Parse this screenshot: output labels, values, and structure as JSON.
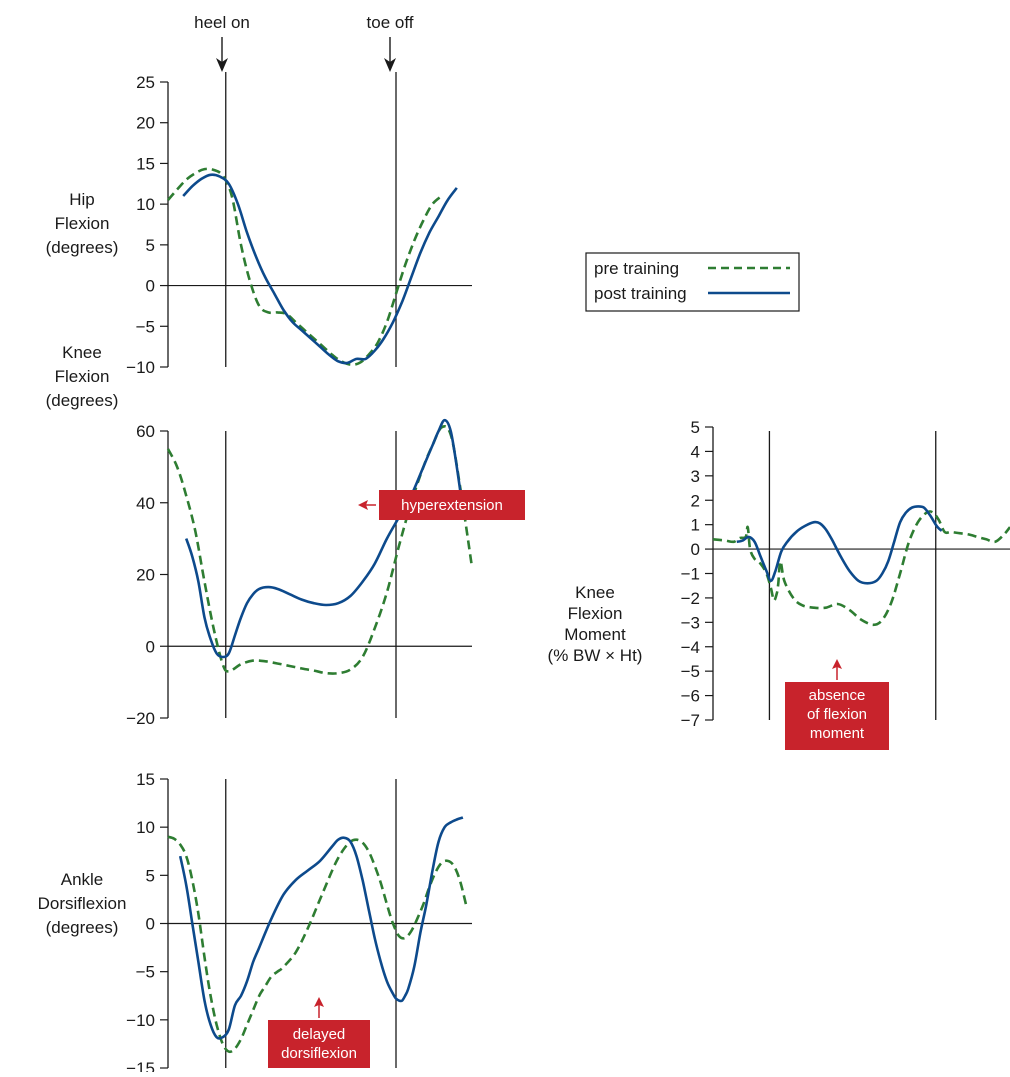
{
  "colors": {
    "pre": "#2e7d32",
    "post": "#0d4a8c",
    "callout": "#c8232c",
    "axis": "#1a1a1a"
  },
  "events": {
    "heel_on": "heel on",
    "toe_off": "toe off"
  },
  "legend": {
    "pre": "pre training",
    "post": "post training"
  },
  "chart_data": [
    {
      "id": "hip",
      "type": "line",
      "ylabel": [
        "Hip",
        "Flexion",
        "(degrees)"
      ],
      "ylim": [
        -10,
        25
      ],
      "yticks": [
        25,
        20,
        15,
        10,
        5,
        0,
        -5,
        -10
      ],
      "xlim": [
        0,
        100
      ],
      "events_x": [
        19,
        75
      ],
      "grid": false,
      "series": [
        {
          "name": "pre training",
          "style": "dashed",
          "x": [
            0,
            3,
            6,
            9,
            12,
            15,
            18,
            21,
            24,
            27,
            30,
            33,
            36,
            39,
            42,
            45,
            48,
            51,
            54,
            57,
            60,
            63,
            66,
            69,
            72,
            75,
            78,
            81,
            84,
            87,
            90
          ],
          "y": [
            10.5,
            11.8,
            13.0,
            13.8,
            14.3,
            14.2,
            13.5,
            11.0,
            5.0,
            0.5,
            -2.5,
            -3.3,
            -3.3,
            -3.5,
            -4.5,
            -5.5,
            -6.5,
            -7.5,
            -8.5,
            -9.3,
            -9.7,
            -9.5,
            -8.5,
            -7.0,
            -4.5,
            -1.0,
            2.5,
            5.5,
            8.0,
            10.0,
            11.0
          ]
        },
        {
          "name": "post training",
          "style": "solid",
          "x": [
            5,
            8,
            11,
            14,
            17,
            20,
            23,
            26,
            29,
            32,
            35,
            38,
            41,
            44,
            47,
            50,
            53,
            56,
            59,
            62,
            65,
            68,
            71,
            74,
            77,
            80,
            83,
            86,
            89,
            92,
            95
          ],
          "y": [
            11.0,
            12.2,
            13.1,
            13.6,
            13.4,
            12.5,
            10.0,
            6.5,
            3.5,
            1.0,
            -1.0,
            -3.0,
            -4.5,
            -5.5,
            -6.5,
            -7.5,
            -8.5,
            -9.3,
            -9.5,
            -9.0,
            -9.0,
            -8.0,
            -6.5,
            -4.5,
            -2.0,
            1.0,
            4.0,
            6.5,
            8.5,
            10.5,
            12.0
          ]
        }
      ]
    },
    {
      "id": "knee",
      "type": "line",
      "ylabel": [
        "Knee",
        "Flexion",
        "(degrees)"
      ],
      "ylim": [
        -20,
        60
      ],
      "yticks": [
        60,
        40,
        20,
        0,
        -20
      ],
      "xlim": [
        0,
        100
      ],
      "events_x": [
        19,
        75
      ],
      "grid": false,
      "series": [
        {
          "name": "pre training",
          "style": "dashed",
          "x": [
            0,
            3,
            6,
            9,
            12,
            15,
            18,
            20,
            24,
            28,
            32,
            36,
            40,
            44,
            48,
            52,
            56,
            60,
            64,
            68,
            72,
            76,
            80,
            84,
            87,
            90,
            93,
            96,
            100
          ],
          "y": [
            55,
            50,
            42,
            32,
            18,
            5,
            -5,
            -7,
            -5,
            -4,
            -4.2,
            -4.8,
            -5.5,
            -6.2,
            -6.8,
            -7.5,
            -7.5,
            -6.5,
            -3,
            5,
            15,
            28,
            40,
            50,
            56,
            61,
            59,
            45,
            22
          ]
        },
        {
          "name": "post training",
          "style": "solid",
          "x": [
            6,
            8,
            10,
            12,
            14,
            16,
            18,
            20,
            22,
            24,
            26,
            28,
            30,
            33,
            36,
            40,
            44,
            48,
            52,
            56,
            60,
            64,
            68,
            72,
            76,
            80,
            84,
            87,
            89,
            91,
            93,
            95,
            97
          ],
          "y": [
            30,
            25,
            18,
            8,
            2,
            -2,
            -3,
            -2,
            3,
            8,
            12,
            14.5,
            16,
            16.5,
            16,
            14.5,
            13,
            12,
            11.5,
            12,
            14,
            18,
            23,
            30,
            36,
            42,
            50,
            56,
            60,
            63,
            60,
            50,
            38
          ]
        }
      ]
    },
    {
      "id": "ankle",
      "type": "line",
      "ylabel": [
        "Ankle",
        "Dorsiflexion",
        "(degrees)"
      ],
      "ylim": [
        -15,
        15
      ],
      "yticks": [
        15,
        10,
        5,
        0,
        -5,
        -10,
        -15
      ],
      "xlim": [
        0,
        100
      ],
      "events_x": [
        19,
        75
      ],
      "grid": false,
      "series": [
        {
          "name": "pre training",
          "style": "dashed",
          "x": [
            0,
            2,
            4,
            6,
            8,
            10,
            12,
            14,
            16,
            18,
            20,
            22,
            24,
            26,
            28,
            30,
            32,
            34,
            36,
            38,
            42,
            46,
            50,
            54,
            56,
            58,
            60,
            62,
            64,
            66,
            68,
            70,
            72,
            74,
            76,
            78,
            80,
            82,
            84,
            86,
            88,
            90,
            92,
            94,
            96,
            98
          ],
          "y": [
            9,
            8.8,
            8.2,
            7.0,
            4.5,
            1.0,
            -3.5,
            -7.5,
            -10.5,
            -12.5,
            -13.3,
            -13.0,
            -12.0,
            -10.5,
            -9.0,
            -7.5,
            -6.5,
            -5.5,
            -5.0,
            -4.5,
            -3.0,
            -0.5,
            2.5,
            5.5,
            6.8,
            7.8,
            8.5,
            8.7,
            8.4,
            7.5,
            6.0,
            4.2,
            2.0,
            0.0,
            -1.3,
            -1.5,
            -0.8,
            0.5,
            2.0,
            3.8,
            5.3,
            6.3,
            6.5,
            6.0,
            4.5,
            2.0
          ]
        },
        {
          "name": "post training",
          "style": "solid",
          "x": [
            4,
            6,
            8,
            10,
            12,
            14,
            16,
            18,
            20,
            22,
            24,
            26,
            28,
            30,
            34,
            38,
            42,
            46,
            50,
            54,
            56,
            58,
            60,
            62,
            64,
            66,
            68,
            70,
            72,
            74,
            75,
            76,
            77,
            78,
            79,
            81,
            83,
            85,
            87,
            89,
            91,
            93,
            95,
            97
          ],
          "y": [
            7.0,
            4.0,
            0.0,
            -4.0,
            -8.0,
            -10.5,
            -11.8,
            -11.8,
            -11.0,
            -8.5,
            -7.5,
            -6.0,
            -4.0,
            -2.5,
            0.5,
            3.0,
            4.5,
            5.5,
            6.5,
            8.0,
            8.7,
            8.9,
            8.5,
            7.0,
            4.5,
            1.5,
            -1.5,
            -4.0,
            -6.0,
            -7.3,
            -7.8,
            -8.0,
            -8.0,
            -7.5,
            -6.8,
            -4.5,
            -1.0,
            2.0,
            5.5,
            8.5,
            10.0,
            10.5,
            10.8,
            11.0
          ]
        }
      ]
    },
    {
      "id": "moment",
      "type": "line",
      "ylabel": [
        "Knee",
        "Flexion",
        "Moment",
        "(% BW × Ht)"
      ],
      "ylim": [
        -7,
        5
      ],
      "yticks": [
        5,
        4,
        3,
        2,
        1,
        0,
        -1,
        -2,
        -3,
        -4,
        -5,
        -6,
        -7
      ],
      "xlim": [
        0,
        100
      ],
      "events_x": [
        19,
        75
      ],
      "grid": false,
      "series": [
        {
          "name": "pre training",
          "style": "dashed",
          "x": [
            0,
            4,
            7,
            9,
            11,
            11.7,
            12.5,
            14,
            16,
            18,
            19.5,
            20.5,
            21.5,
            22,
            22.7,
            24,
            27,
            30,
            34,
            38,
            42,
            46,
            50,
            54,
            57,
            60,
            63,
            66,
            69,
            72,
            74,
            76,
            78,
            80,
            83,
            86,
            89,
            92,
            95,
            98,
            100
          ],
          "y": [
            0.4,
            0.35,
            0.3,
            0.45,
            0.5,
            0.9,
            0.0,
            -0.4,
            -0.6,
            -1.0,
            -1.6,
            -2.1,
            -1.8,
            -1.4,
            -0.5,
            -1.3,
            -2.0,
            -2.3,
            -2.4,
            -2.4,
            -2.25,
            -2.5,
            -2.9,
            -3.1,
            -2.9,
            -2.2,
            -1.0,
            0.3,
            1.1,
            1.5,
            1.5,
            1.2,
            0.7,
            0.7,
            0.65,
            0.6,
            0.5,
            0.4,
            0.3,
            0.6,
            0.9
          ]
        },
        {
          "name": "post training",
          "style": "solid",
          "x": [
            8,
            10,
            12,
            14,
            16,
            18,
            19.5,
            21,
            23,
            25,
            28,
            31,
            34,
            36,
            38,
            40,
            43,
            46,
            49,
            52,
            55,
            57,
            59,
            61,
            63,
            65,
            67,
            69,
            71,
            73,
            75,
            76,
            77
          ],
          "y": [
            0.3,
            0.35,
            0.5,
            0.3,
            -0.3,
            -0.9,
            -1.3,
            -0.9,
            -0.1,
            0.3,
            0.7,
            0.95,
            1.1,
            1.05,
            0.8,
            0.4,
            -0.3,
            -0.9,
            -1.3,
            -1.4,
            -1.3,
            -1.0,
            -0.5,
            0.3,
            1.1,
            1.5,
            1.7,
            1.75,
            1.7,
            1.4,
            1.0,
            0.85,
            0.75
          ]
        }
      ]
    }
  ],
  "callouts": {
    "hyperextension": "hyperextension",
    "flexion": [
      "absence",
      "of flexion",
      "moment"
    ],
    "dorsiflexion": [
      "delayed",
      "dorsiflexion"
    ]
  }
}
